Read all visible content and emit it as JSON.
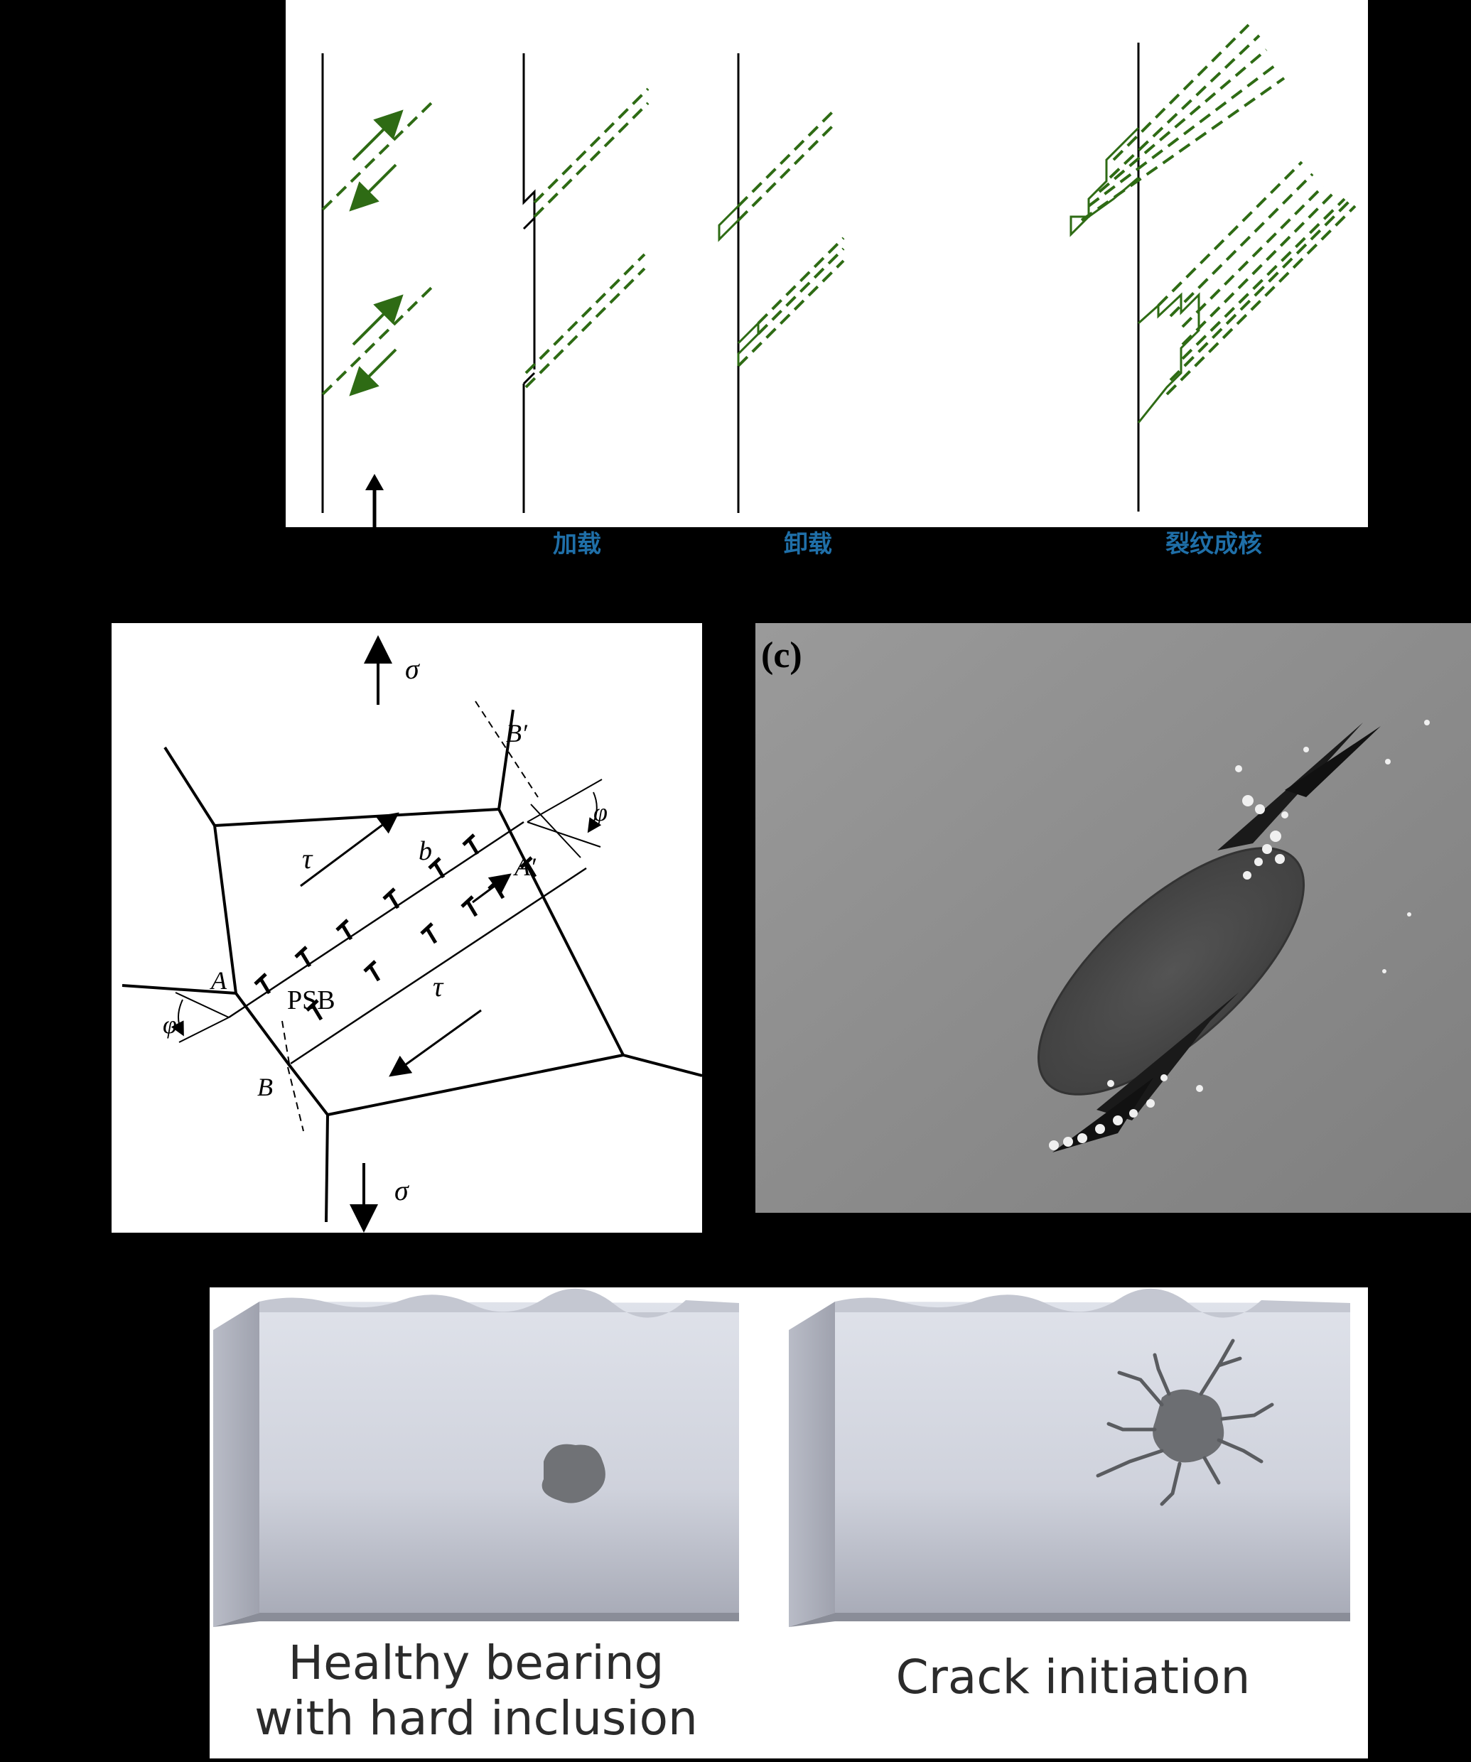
{
  "panel_a": {
    "stage_labels": [
      "加载",
      "卸载",
      "裂纹成核"
    ],
    "colors": {
      "slip": "#2e6b14",
      "line": "#000000",
      "label": "#1f6fa8"
    }
  },
  "panel_b": {
    "sigma_top": "σ",
    "sigma_bottom": "σ",
    "tau_upper": "τ",
    "tau_lower": "τ",
    "burgers": "b",
    "band": "PSB",
    "point_a": "A",
    "point_a_prime": "A′",
    "point_b": "B",
    "point_b_prime": "B′",
    "phi_left": "φ",
    "phi_right": "φ"
  },
  "panel_c": {
    "label": "(c)"
  },
  "panel_d": {
    "left_caption": "Healthy bearing\nwith hard inclusion",
    "right_caption": "Crack initiation"
  }
}
